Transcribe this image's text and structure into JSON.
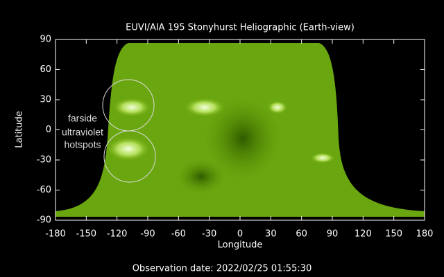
{
  "chart_data": {
    "type": "image",
    "title": "EUVI/AIA 195 Stonyhurst Heliographic (Earth-view)",
    "x_label": "Longitude",
    "y_label": "Latitude",
    "xlim": [
      -180,
      180
    ],
    "xticks": [
      -180,
      -150,
      -120,
      -90,
      -60,
      -30,
      0,
      30,
      60,
      90,
      120,
      150,
      180
    ],
    "ylim": [
      -90,
      90
    ],
    "yticks": [
      -90,
      -60,
      -30,
      0,
      30,
      60,
      90
    ],
    "annotation": [
      "farside",
      "ultraviolet",
      "hotspots"
    ],
    "footer": "Observation date: 2022/02/25 01:55:30"
  }
}
